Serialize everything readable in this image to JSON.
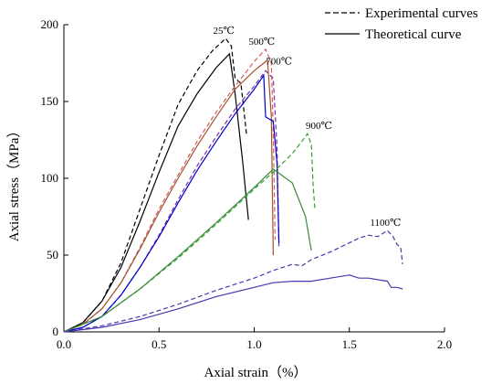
{
  "chart_data": {
    "type": "line",
    "xlabel": "Axial strain（%）",
    "ylabel": "Axial stress（MPa）",
    "xlim": [
      0,
      2.0
    ],
    "ylim": [
      0,
      200
    ],
    "xticks": [
      "0.0",
      "0.5",
      "1.0",
      "1.5",
      "2.0"
    ],
    "yticks": [
      "0",
      "50",
      "100",
      "150",
      "200"
    ],
    "grid": false,
    "legend": {
      "placement": "top-right",
      "entries": [
        {
          "label": "Experimental curves",
          "style": "dashed"
        },
        {
          "label": "Theoretical curve",
          "style": "solid"
        }
      ]
    },
    "annotations": [
      {
        "text": "25℃",
        "x": 0.84,
        "y": 194
      },
      {
        "text": "500℃",
        "x": 1.04,
        "y": 187
      },
      {
        "text": "700℃",
        "x": 1.13,
        "y": 174
      },
      {
        "text": "900℃",
        "x": 1.34,
        "y": 132
      },
      {
        "text": "1100℃",
        "x": 1.69,
        "y": 69
      }
    ],
    "series": [
      {
        "group": "25℃",
        "kind": "experimental",
        "color": "#000000",
        "x": [
          0,
          0.1,
          0.2,
          0.3,
          0.4,
          0.5,
          0.6,
          0.7,
          0.78,
          0.85,
          0.88,
          0.9,
          0.93,
          0.96
        ],
        "y": [
          0,
          6,
          20,
          45,
          80,
          115,
          148,
          170,
          183,
          191,
          186,
          165,
          162,
          128
        ]
      },
      {
        "group": "25℃",
        "kind": "theoretical",
        "color": "#000000",
        "x": [
          0,
          0.1,
          0.2,
          0.3,
          0.4,
          0.5,
          0.6,
          0.7,
          0.8,
          0.87,
          0.9,
          0.94,
          0.97
        ],
        "y": [
          0,
          6,
          20,
          42,
          72,
          104,
          134,
          155,
          172,
          181,
          155,
          110,
          73
        ]
      },
      {
        "group": "500℃",
        "kind": "experimental",
        "color": "#d65b5b",
        "x": [
          0,
          0.1,
          0.2,
          0.3,
          0.4,
          0.5,
          0.6,
          0.7,
          0.8,
          0.9,
          1.0,
          1.06,
          1.09,
          1.1,
          1.11
        ],
        "y": [
          0,
          5,
          15,
          32,
          55,
          80,
          102,
          124,
          143,
          160,
          176,
          184,
          175,
          130,
          60
        ]
      },
      {
        "group": "500℃",
        "kind": "theoretical",
        "color": "#a0522d",
        "x": [
          0,
          0.1,
          0.2,
          0.3,
          0.4,
          0.5,
          0.6,
          0.7,
          0.8,
          0.9,
          1.0,
          1.07,
          1.09,
          1.1
        ],
        "y": [
          0,
          5,
          15,
          32,
          54,
          78,
          100,
          121,
          140,
          158,
          170,
          177,
          140,
          50
        ]
      },
      {
        "group": "700℃",
        "kind": "experimental",
        "color": "#7b2fa0",
        "x": [
          0,
          0.1,
          0.2,
          0.3,
          0.4,
          0.5,
          0.6,
          0.7,
          0.8,
          0.9,
          1.0,
          1.06,
          1.1,
          1.12,
          1.13
        ],
        "y": [
          0,
          3,
          10,
          24,
          42,
          63,
          86,
          108,
          127,
          145,
          160,
          170,
          165,
          120,
          55
        ]
      },
      {
        "group": "700℃",
        "kind": "theoretical",
        "color": "#0000cc",
        "x": [
          0,
          0.1,
          0.2,
          0.3,
          0.4,
          0.5,
          0.6,
          0.7,
          0.8,
          0.9,
          1.0,
          1.05,
          1.06,
          1.1,
          1.12,
          1.13
        ],
        "y": [
          0,
          3,
          10,
          24,
          42,
          62,
          84,
          105,
          124,
          142,
          158,
          167,
          140,
          137,
          110,
          58
        ]
      },
      {
        "group": "900℃",
        "kind": "experimental",
        "color": "#2ea02e",
        "x": [
          0,
          0.2,
          0.4,
          0.6,
          0.8,
          1.0,
          1.1,
          1.2,
          1.25,
          1.28,
          1.3,
          1.31,
          1.32
        ],
        "y": [
          0,
          10,
          28,
          48,
          70,
          93,
          104,
          116,
          124,
          129,
          122,
          95,
          79
        ]
      },
      {
        "group": "900℃",
        "kind": "theoretical",
        "color": "#3a8a3a",
        "x": [
          0,
          0.2,
          0.4,
          0.6,
          0.8,
          1.0,
          1.1,
          1.2,
          1.27,
          1.3
        ],
        "y": [
          0,
          10,
          28,
          49,
          71,
          94,
          106,
          97,
          75,
          53
        ]
      },
      {
        "group": "1100℃",
        "kind": "experimental",
        "color": "#4a36b0",
        "x": [
          0,
          0.2,
          0.4,
          0.6,
          0.8,
          1.0,
          1.1,
          1.2,
          1.25,
          1.3,
          1.4,
          1.5,
          1.55,
          1.6,
          1.65,
          1.7,
          1.73,
          1.75,
          1.77,
          1.78
        ],
        "y": [
          0,
          4,
          10,
          18,
          27,
          35,
          40,
          44,
          43,
          47,
          52,
          58,
          61,
          63,
          62,
          66,
          62,
          57,
          55,
          44
        ]
      },
      {
        "group": "1100℃",
        "kind": "theoretical",
        "color": "#4a36b0",
        "x": [
          0,
          0.2,
          0.4,
          0.6,
          0.8,
          1.0,
          1.1,
          1.2,
          1.3,
          1.4,
          1.5,
          1.55,
          1.6,
          1.7,
          1.72,
          1.75,
          1.78
        ],
        "y": [
          0,
          3,
          8,
          15,
          23,
          29,
          32,
          33,
          33,
          35,
          37,
          35,
          35,
          33,
          29,
          29,
          28
        ]
      }
    ]
  }
}
